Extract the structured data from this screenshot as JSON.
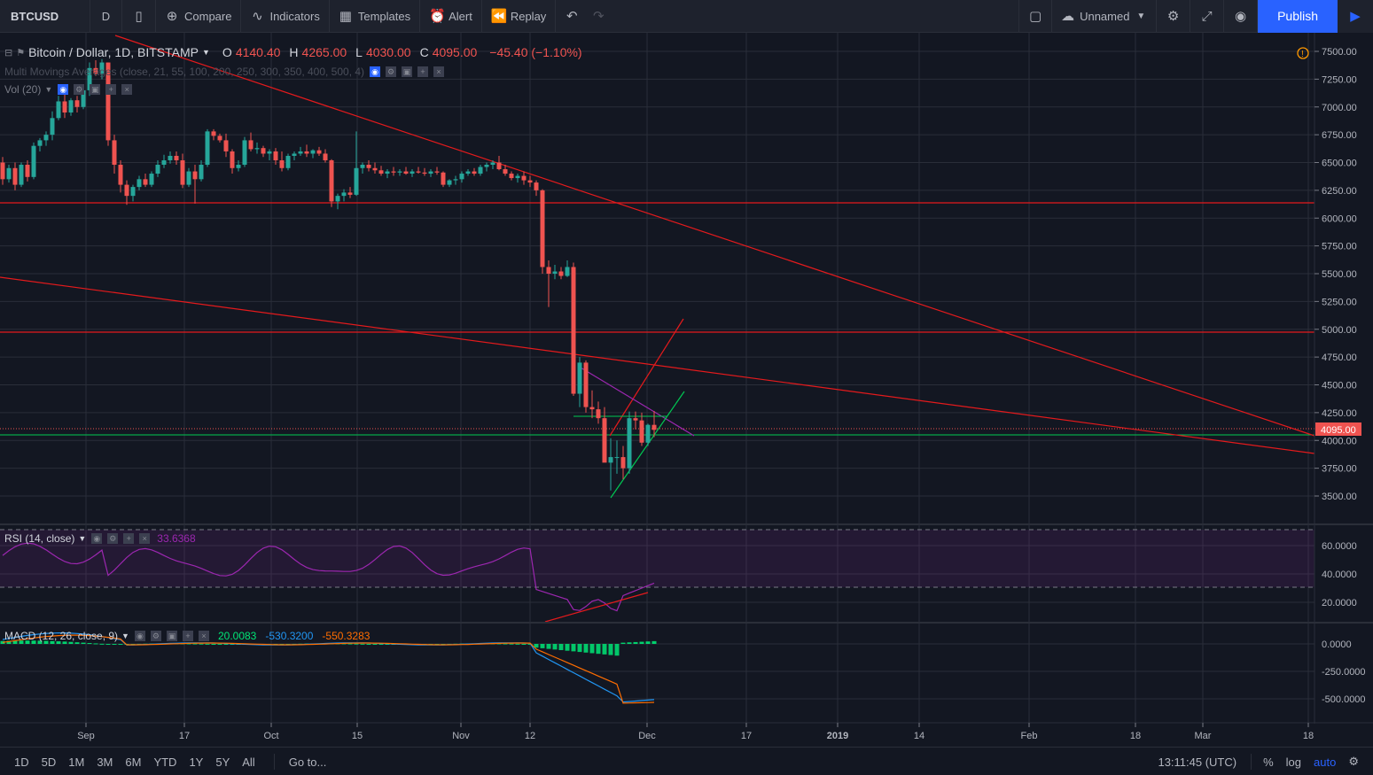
{
  "toolbar": {
    "symbol": "BTCUSD",
    "interval": "D",
    "compare": "Compare",
    "indicators": "Indicators",
    "templates": "Templates",
    "alert": "Alert",
    "replay": "Replay",
    "layout_name": "Unnamed",
    "publish": "Publish"
  },
  "legend": {
    "title": "Bitcoin / Dollar, 1D, BITSTAMP",
    "o_label": "O",
    "o": "4140.40",
    "h_label": "H",
    "h": "4265.00",
    "l_label": "L",
    "l": "4030.00",
    "c_label": "C",
    "c": "4095.00",
    "change": "−45.40 (−1.10%)",
    "mma": "Multi Movings Averages (close, 21, 55, 100, 200, 250, 300, 350, 400, 500, 4)",
    "vol": "Vol (20)",
    "rsi": "RSI (14, close)",
    "rsi_value": "33.6368",
    "macd": "MACD (12, 26, close, 9)",
    "macd_v1": "20.0083",
    "macd_v2": "-530.3200",
    "macd_v3": "-550.3283"
  },
  "price_axis": [
    "7500.00",
    "7250.00",
    "7000.00",
    "6750.00",
    "6500.00",
    "6250.00",
    "6000.00",
    "5750.00",
    "5500.00",
    "5250.00",
    "5000.00",
    "4750.00",
    "4500.00",
    "4250.00",
    "4000.00",
    "3750.00",
    "3500.00"
  ],
  "last_price": "4095.00",
  "rsi_axis": [
    "60.0000",
    "40.0000",
    "20.0000"
  ],
  "macd_axis": [
    "0.0000",
    "-250.0000",
    "-500.0000"
  ],
  "time_axis": [
    "Sep",
    "17",
    "Oct",
    "15",
    "Nov",
    "12",
    "Dec",
    "17",
    "2019",
    "14",
    "Feb",
    "18",
    "Mar",
    "18"
  ],
  "ranges": [
    "1D",
    "5D",
    "1M",
    "3M",
    "6M",
    "YTD",
    "1Y",
    "5Y",
    "All"
  ],
  "goto": "Go to...",
  "clock": "13:11:45 (UTC)",
  "scale_opts": [
    "%",
    "log",
    "auto"
  ],
  "colors": {
    "up": "#26a69a",
    "down": "#ef5350",
    "bg": "#131722",
    "grid": "#2a2e39",
    "accent": "#2962ff",
    "rsi": "#9c27b0",
    "trend_red": "#e41a1c",
    "trend_green": "#00c853"
  }
}
